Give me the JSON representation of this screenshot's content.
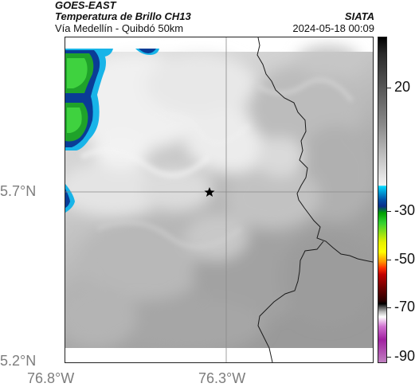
{
  "header": {
    "line1": "GOES-EAST",
    "line2": "Temperatura de Brillo CH13",
    "line3": "Vía Medellín - Quibdó 50km",
    "source": "SIATA",
    "timestamp": "2024-05-18 00:09"
  },
  "axes": {
    "lat_labels": [
      "5.7°N",
      "5.2°N"
    ],
    "lon_labels": [
      "76.8°W",
      "76.3°W"
    ]
  },
  "colorbar": {
    "tick_labels": [
      "20",
      "-30",
      "-50",
      "-70",
      "-90"
    ]
  },
  "map": {
    "marker_icon": "star-icon"
  }
}
